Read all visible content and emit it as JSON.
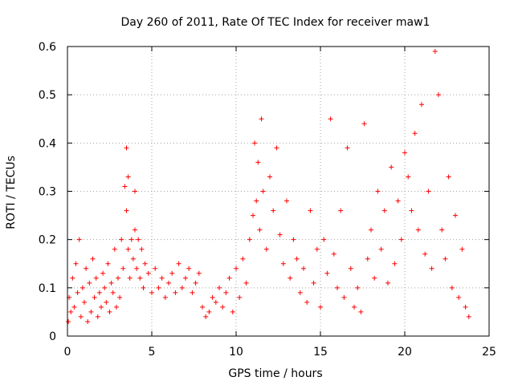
{
  "chart_data": {
    "type": "scatter",
    "title": "Day 260 of 2011, Rate Of TEC Index for receiver maw1",
    "xlabel": "GPS time / hours",
    "ylabel": "ROTI / TECUs",
    "xlim": [
      0,
      25
    ],
    "ylim": [
      0,
      0.6
    ],
    "x_ticks": [
      0,
      5,
      10,
      15,
      20,
      25
    ],
    "x_tick_labels": [
      "0",
      "5",
      "10",
      "15",
      "20",
      "25"
    ],
    "y_ticks": [
      0,
      0.1,
      0.2,
      0.3,
      0.4,
      0.5,
      0.6
    ],
    "y_tick_labels": [
      "0",
      "0.1",
      "0.2",
      "0.3",
      "0.4",
      "0.5",
      "0.6"
    ],
    "grid": true,
    "marker": "plus",
    "colors": {
      "points": "#ff0000",
      "grid": "#a0a0a0",
      "frame": "#000000"
    },
    "series": [
      {
        "values_description_free": true,
        "x": [
          0.05,
          0.1,
          0.2,
          0.3,
          0.4,
          0.5,
          0.6,
          0.7,
          0.8,
          0.9,
          1.0,
          1.1,
          1.2,
          1.3,
          1.4,
          1.5,
          1.6,
          1.7,
          1.8,
          1.9,
          2.0,
          2.1,
          2.2,
          2.3,
          2.4,
          2.5,
          2.6,
          2.7,
          2.8,
          2.9,
          3.0,
          3.1,
          3.2,
          3.3,
          3.4,
          3.5,
          3.5,
          3.6,
          3.6,
          3.7,
          3.8,
          3.9,
          4.0,
          4.0,
          4.1,
          4.2,
          4.3,
          4.4,
          4.5,
          4.6,
          4.8,
          5.0,
          5.2,
          5.4,
          5.6,
          5.8,
          6.0,
          6.2,
          6.4,
          6.6,
          6.8,
          7.0,
          7.2,
          7.4,
          7.6,
          7.8,
          8.0,
          8.2,
          8.4,
          8.6,
          8.8,
          9.0,
          9.2,
          9.4,
          9.6,
          9.8,
          10.0,
          10.2,
          10.4,
          10.6,
          10.8,
          11.0,
          11.1,
          11.2,
          11.3,
          11.4,
          11.5,
          11.6,
          11.8,
          12.0,
          12.2,
          12.4,
          12.6,
          12.8,
          13.0,
          13.2,
          13.4,
          13.6,
          13.8,
          14.0,
          14.2,
          14.4,
          14.6,
          14.8,
          15.0,
          15.2,
          15.4,
          15.6,
          15.8,
          16.0,
          16.2,
          16.4,
          16.6,
          16.8,
          17.0,
          17.2,
          17.4,
          17.6,
          17.8,
          18.0,
          18.2,
          18.4,
          18.6,
          18.8,
          19.0,
          19.2,
          19.4,
          19.6,
          19.8,
          20.0,
          20.2,
          20.4,
          20.6,
          20.8,
          21.0,
          21.2,
          21.4,
          21.6,
          21.8,
          22.0,
          22.2,
          22.4,
          22.6,
          22.8,
          23.0,
          23.2,
          23.4,
          23.6,
          23.8
        ],
        "y": [
          0.03,
          0.08,
          0.05,
          0.12,
          0.06,
          0.15,
          0.09,
          0.2,
          0.04,
          0.1,
          0.07,
          0.14,
          0.03,
          0.11,
          0.05,
          0.16,
          0.08,
          0.12,
          0.04,
          0.09,
          0.06,
          0.13,
          0.1,
          0.07,
          0.15,
          0.05,
          0.11,
          0.09,
          0.18,
          0.06,
          0.12,
          0.08,
          0.2,
          0.14,
          0.31,
          0.39,
          0.26,
          0.33,
          0.18,
          0.12,
          0.2,
          0.16,
          0.22,
          0.3,
          0.14,
          0.2,
          0.12,
          0.18,
          0.1,
          0.15,
          0.13,
          0.09,
          0.14,
          0.1,
          0.12,
          0.08,
          0.11,
          0.13,
          0.09,
          0.15,
          0.1,
          0.12,
          0.14,
          0.09,
          0.11,
          0.13,
          0.06,
          0.04,
          0.05,
          0.08,
          0.07,
          0.1,
          0.06,
          0.09,
          0.12,
          0.05,
          0.14,
          0.08,
          0.16,
          0.11,
          0.2,
          0.25,
          0.4,
          0.28,
          0.36,
          0.22,
          0.45,
          0.3,
          0.18,
          0.33,
          0.26,
          0.39,
          0.21,
          0.15,
          0.28,
          0.12,
          0.2,
          0.16,
          0.09,
          0.14,
          0.07,
          0.26,
          0.11,
          0.18,
          0.06,
          0.2,
          0.13,
          0.45,
          0.17,
          0.1,
          0.26,
          0.08,
          0.39,
          0.14,
          0.06,
          0.1,
          0.05,
          0.44,
          0.16,
          0.22,
          0.12,
          0.3,
          0.18,
          0.26,
          0.11,
          0.35,
          0.15,
          0.28,
          0.2,
          0.38,
          0.33,
          0.26,
          0.42,
          0.22,
          0.48,
          0.17,
          0.3,
          0.14,
          0.59,
          0.5,
          0.22,
          0.16,
          0.33,
          0.1,
          0.25,
          0.08,
          0.18,
          0.06,
          0.04
        ]
      }
    ]
  }
}
